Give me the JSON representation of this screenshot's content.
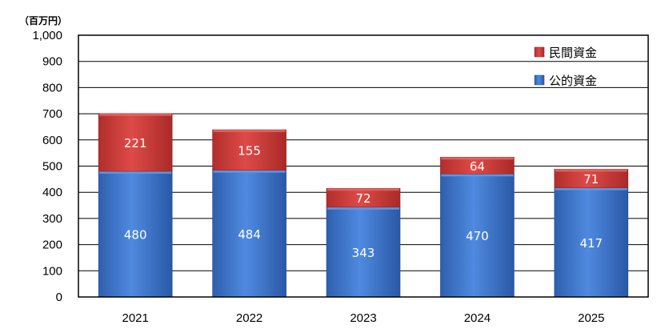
{
  "chart_data": {
    "type": "bar",
    "stacked": true,
    "unit_label": "（百万円）",
    "categories": [
      "2021",
      "2022",
      "2023",
      "2024",
      "2025"
    ],
    "series": [
      {
        "name": "公的資金",
        "values": [
          480,
          484,
          343,
          470,
          417
        ],
        "color": "#3f78c8"
      },
      {
        "name": "民間資金",
        "values": [
          221,
          155,
          72,
          64,
          71
        ],
        "color": "#cc3a38"
      }
    ],
    "ylim": [
      0,
      1000
    ],
    "yticks": [
      "0",
      "100",
      "200",
      "300",
      "400",
      "500",
      "600",
      "700",
      "800",
      "900",
      "1,000"
    ],
    "grid": true,
    "legend_position": "top-right"
  }
}
